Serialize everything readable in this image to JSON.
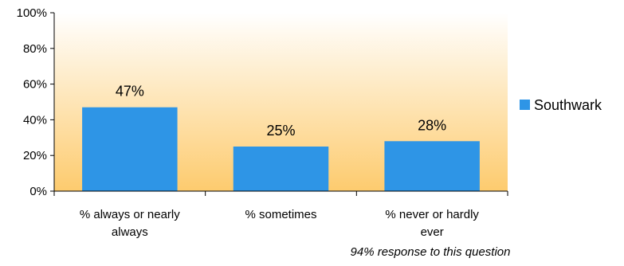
{
  "chart_data": {
    "type": "bar",
    "categories": [
      "% always or nearly always",
      "% sometimes",
      "% never or hardly ever"
    ],
    "category_lines": [
      [
        "% always or nearly",
        "always"
      ],
      [
        "% sometimes"
      ],
      [
        "% never or hardly",
        "ever"
      ]
    ],
    "series": [
      {
        "name": "Southwark",
        "values": [
          47,
          25,
          28
        ],
        "labels": [
          "47%",
          "25%",
          "28%"
        ]
      }
    ],
    "ylim": [
      0,
      100
    ],
    "yticks": [
      "0%",
      "20%",
      "40%",
      "60%",
      "80%",
      "100%"
    ],
    "ytick_values": [
      0,
      20,
      40,
      60,
      80,
      100
    ],
    "legend_position": "right",
    "annotation": "94% response to this question",
    "grid": false,
    "colors": {
      "bar": "#2E95E6",
      "background_top": "#FFFFFF",
      "background_bottom": "#FDCB6E",
      "axis": "#000000"
    }
  }
}
